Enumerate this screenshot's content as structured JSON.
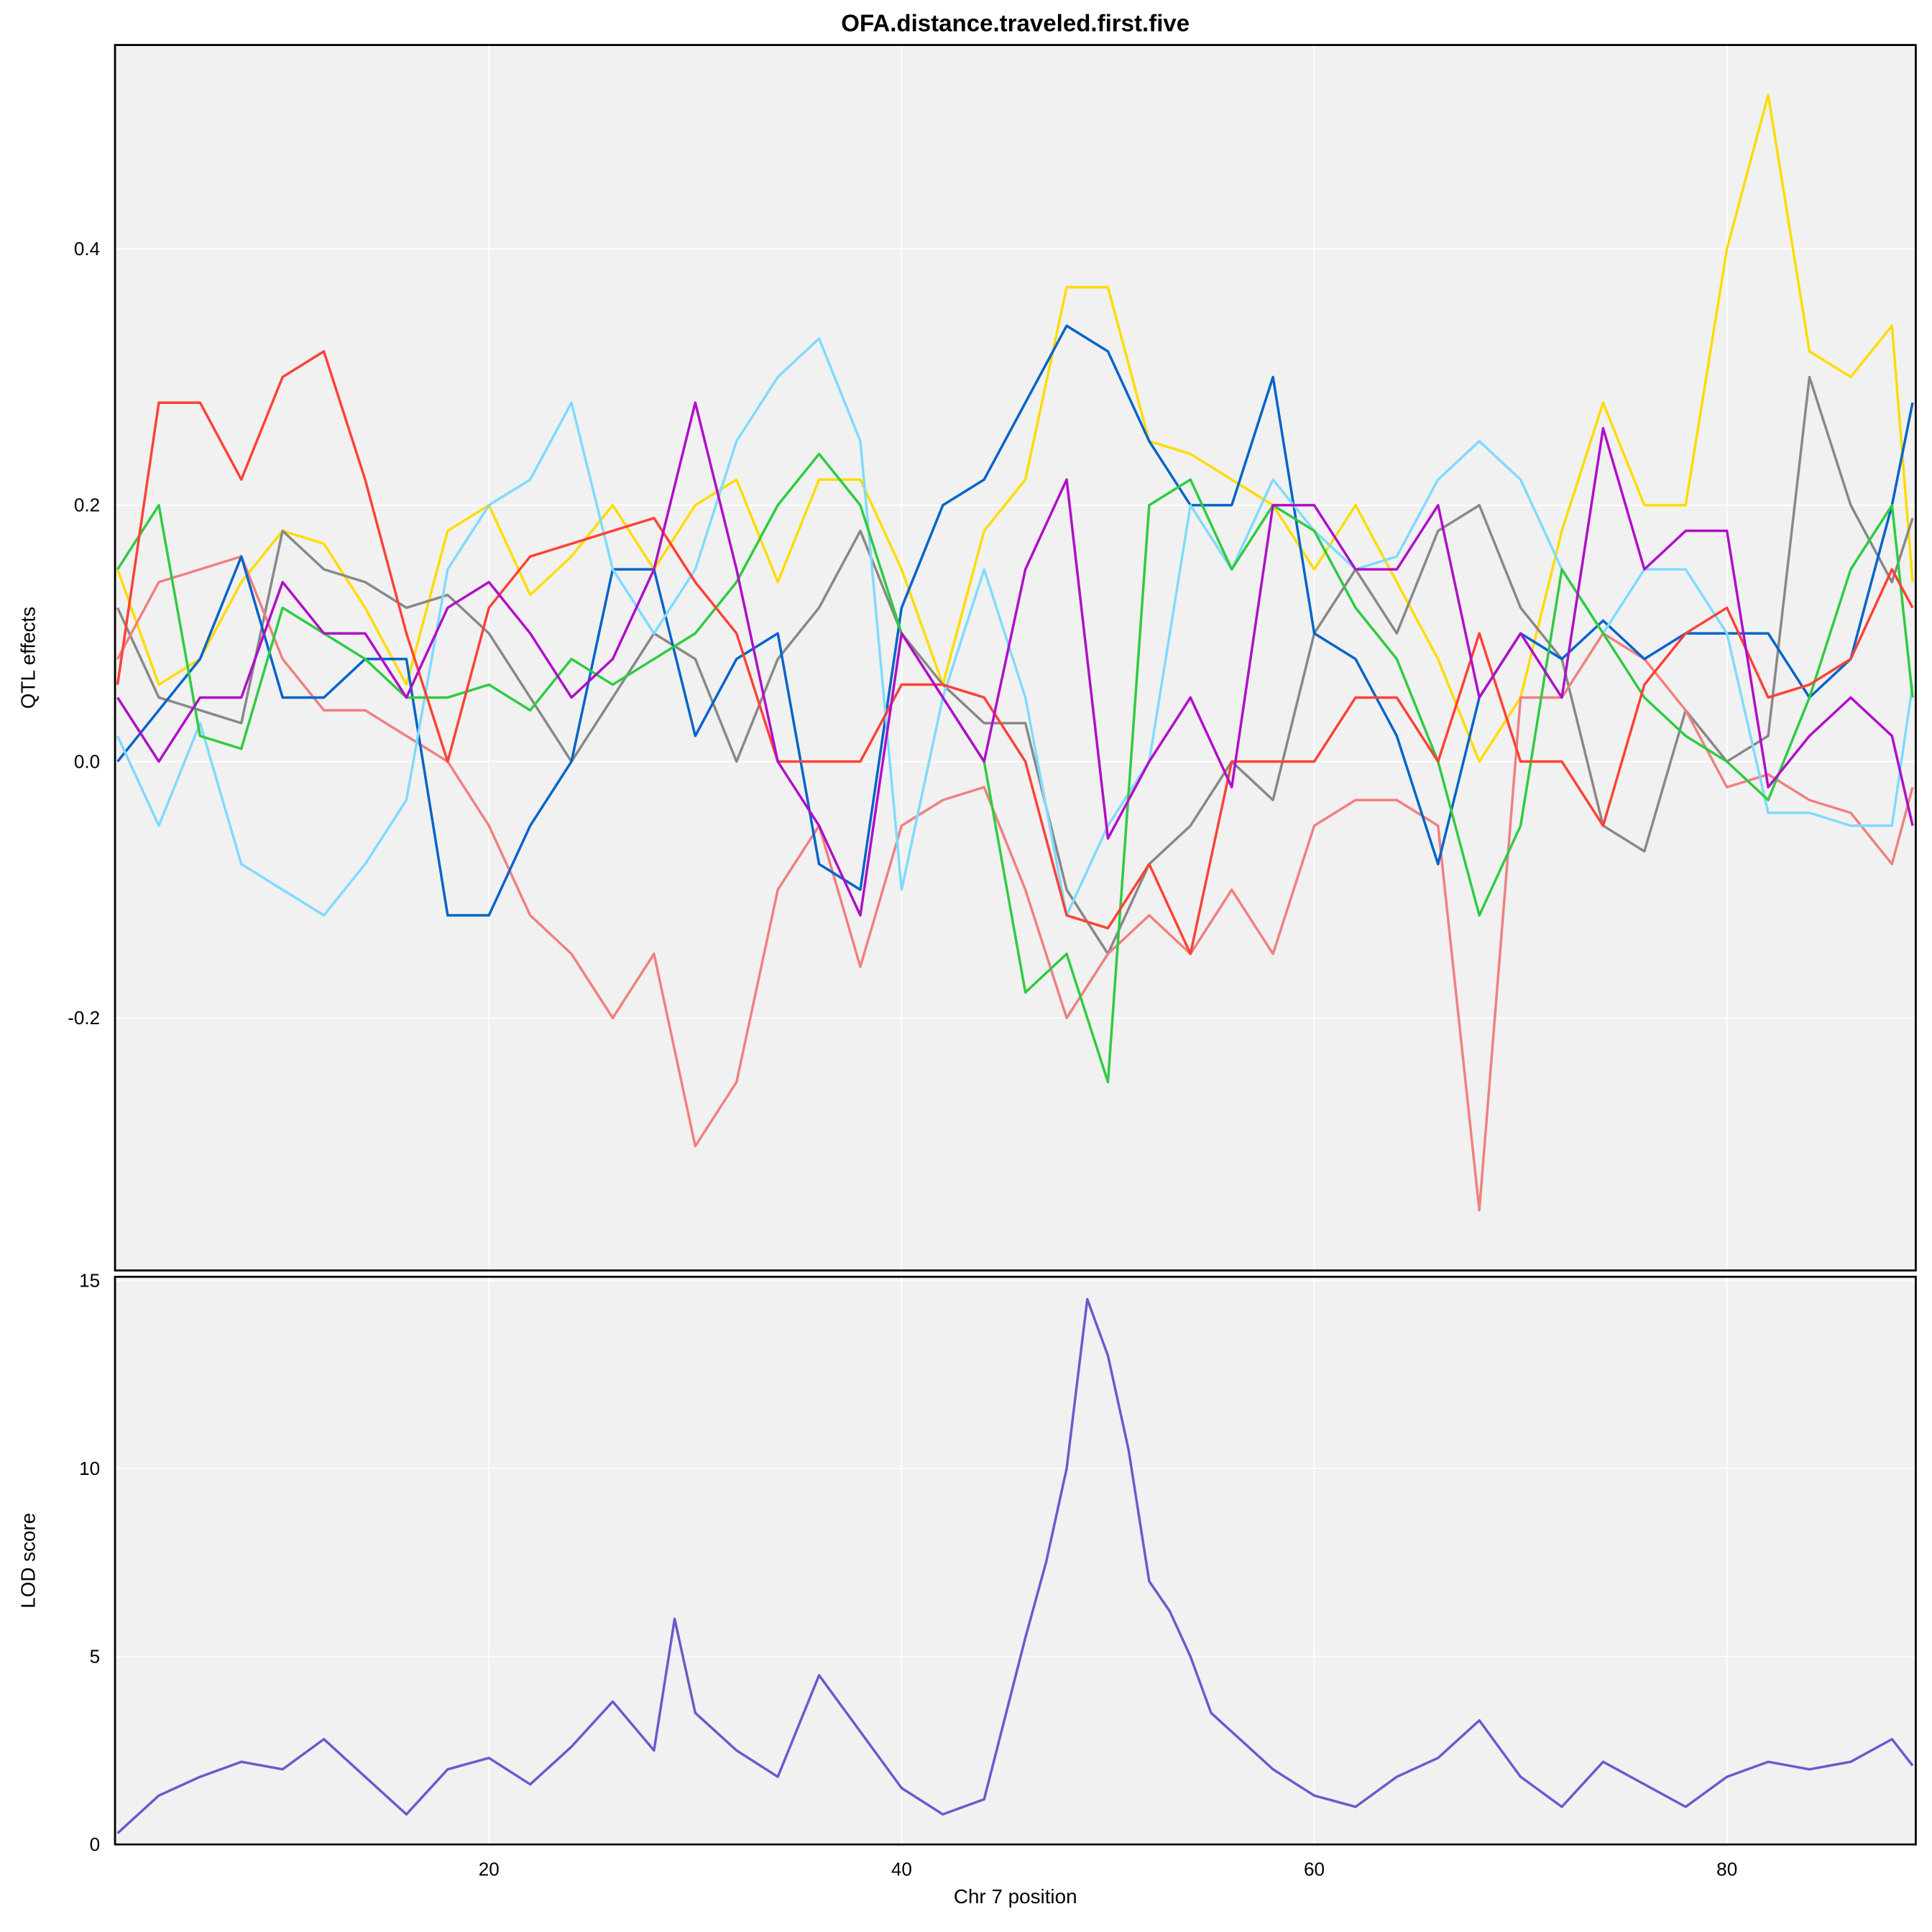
{
  "chart_data": [
    {
      "type": "line",
      "title": "OFA.distance.traveled.first.five",
      "xlabel": "",
      "ylabel": "QTL effects",
      "xlim": [
        1.88,
        89.15
      ],
      "ylim": [
        -0.397,
        0.559
      ],
      "grid": true,
      "xticks": [
        20,
        40,
        60,
        80
      ],
      "yticks": [
        -0.2,
        0.0,
        0.2,
        0.4
      ],
      "ytick_labels": [
        "-0.2",
        "0.0",
        "0.2",
        "0.4"
      ],
      "x": [
        2,
        4,
        6,
        8,
        10,
        12,
        14,
        16,
        18,
        20,
        22,
        24,
        26,
        28,
        30,
        32,
        34,
        36,
        38,
        40,
        42,
        44,
        46,
        48,
        50,
        52,
        54,
        56,
        58,
        60,
        62,
        64,
        66,
        68,
        70,
        72,
        74,
        76,
        78,
        80,
        82,
        84,
        86,
        88,
        89
      ],
      "series": [
        {
          "name": "yellow",
          "color": "#FFDC00",
          "values": [
            0.15,
            0.06,
            0.08,
            0.14,
            0.18,
            0.17,
            0.12,
            0.06,
            0.18,
            0.2,
            0.13,
            0.16,
            0.2,
            0.15,
            0.2,
            0.22,
            0.14,
            0.22,
            0.22,
            0.15,
            0.06,
            0.18,
            0.22,
            0.37,
            0.37,
            0.25,
            0.24,
            0.22,
            0.2,
            0.15,
            0.2,
            0.14,
            0.08,
            0.0,
            0.05,
            0.18,
            0.28,
            0.2,
            0.2,
            0.4,
            0.52,
            0.32,
            0.3,
            0.34,
            0.14
          ]
        },
        {
          "name": "gray",
          "color": "#888888",
          "values": [
            0.12,
            0.05,
            0.04,
            0.03,
            0.18,
            0.15,
            0.14,
            0.12,
            0.13,
            0.1,
            0.05,
            0.0,
            0.05,
            0.1,
            0.08,
            0.0,
            0.08,
            0.12,
            0.18,
            0.1,
            0.06,
            0.03,
            0.03,
            -0.1,
            -0.15,
            -0.08,
            -0.05,
            0.0,
            -0.03,
            0.1,
            0.15,
            0.1,
            0.18,
            0.2,
            0.12,
            0.08,
            -0.05,
            -0.07,
            0.04,
            0.0,
            0.02,
            0.3,
            0.2,
            0.14,
            0.19
          ]
        },
        {
          "name": "salmon",
          "color": "#F08080",
          "values": [
            0.08,
            0.14,
            0.15,
            0.16,
            0.08,
            0.04,
            0.04,
            0.02,
            0.0,
            -0.05,
            -0.12,
            -0.15,
            -0.2,
            -0.15,
            -0.3,
            -0.25,
            -0.1,
            -0.05,
            -0.16,
            -0.05,
            -0.03,
            -0.02,
            -0.1,
            -0.2,
            -0.15,
            -0.12,
            -0.15,
            -0.1,
            -0.15,
            -0.05,
            -0.03,
            -0.03,
            -0.05,
            -0.35,
            0.05,
            0.05,
            0.1,
            0.08,
            0.04,
            -0.02,
            -0.01,
            -0.03,
            -0.04,
            -0.08,
            -0.02
          ]
        },
        {
          "name": "blue",
          "color": "#0064C9",
          "values": [
            0.0,
            0.04,
            0.08,
            0.16,
            0.05,
            0.05,
            0.08,
            0.08,
            -0.12,
            -0.12,
            -0.05,
            0.0,
            0.15,
            0.15,
            0.02,
            0.08,
            0.1,
            -0.08,
            -0.1,
            0.12,
            0.2,
            0.22,
            0.28,
            0.34,
            0.32,
            0.25,
            0.2,
            0.2,
            0.3,
            0.1,
            0.08,
            0.02,
            -0.08,
            0.05,
            0.1,
            0.08,
            0.11,
            0.08,
            0.1,
            0.1,
            0.1,
            0.05,
            0.08,
            0.2,
            0.28
          ]
        },
        {
          "name": "lightblue",
          "color": "#7FDBFF",
          "values": [
            0.02,
            -0.05,
            0.03,
            -0.08,
            -0.1,
            -0.12,
            -0.08,
            -0.03,
            0.15,
            0.2,
            0.22,
            0.28,
            0.15,
            0.1,
            0.15,
            0.25,
            0.3,
            0.33,
            0.25,
            -0.1,
            0.05,
            0.15,
            0.05,
            -0.12,
            -0.05,
            0.0,
            0.2,
            0.15,
            0.22,
            0.18,
            0.15,
            0.16,
            0.22,
            0.25,
            0.22,
            0.15,
            0.1,
            0.15,
            0.15,
            0.1,
            -0.04,
            -0.04,
            -0.05,
            -0.05,
            0.06
          ]
        },
        {
          "name": "green",
          "color": "#2ECC40",
          "values": [
            0.15,
            0.2,
            0.02,
            0.01,
            0.12,
            0.1,
            0.08,
            0.05,
            0.05,
            0.06,
            0.04,
            0.08,
            0.06,
            0.08,
            0.1,
            0.14,
            0.2,
            0.24,
            0.2,
            0.1,
            0.05,
            0.0,
            -0.18,
            -0.15,
            -0.25,
            0.2,
            0.22,
            0.15,
            0.2,
            0.18,
            0.12,
            0.08,
            0.0,
            -0.12,
            -0.05,
            0.15,
            0.1,
            0.05,
            0.02,
            0.0,
            -0.03,
            0.05,
            0.15,
            0.2,
            0.05
          ]
        },
        {
          "name": "red",
          "color": "#FF4136",
          "values": [
            0.06,
            0.28,
            0.28,
            0.22,
            0.3,
            0.32,
            0.22,
            0.1,
            0.0,
            0.12,
            0.16,
            0.17,
            0.18,
            0.19,
            0.14,
            0.1,
            0.0,
            0.0,
            0.0,
            0.06,
            0.06,
            0.05,
            0.0,
            -0.12,
            -0.13,
            -0.08,
            -0.15,
            0.0,
            0.0,
            0.0,
            0.05,
            0.05,
            0.0,
            0.1,
            0.0,
            0.0,
            -0.05,
            0.06,
            0.1,
            0.12,
            0.05,
            0.06,
            0.08,
            0.15,
            0.12
          ]
        },
        {
          "name": "purple",
          "color": "#B10DC9",
          "values": [
            0.05,
            0.0,
            0.05,
            0.05,
            0.14,
            0.1,
            0.1,
            0.05,
            0.12,
            0.14,
            0.1,
            0.05,
            0.08,
            0.15,
            0.28,
            0.15,
            0.0,
            -0.05,
            -0.12,
            0.1,
            0.05,
            0.0,
            0.15,
            0.22,
            -0.06,
            0.0,
            0.05,
            -0.02,
            0.2,
            0.2,
            0.15,
            0.15,
            0.2,
            0.05,
            0.1,
            0.05,
            0.26,
            0.15,
            0.18,
            0.18,
            -0.02,
            0.02,
            0.05,
            0.02,
            -0.05
          ]
        }
      ]
    },
    {
      "type": "line",
      "title": "",
      "xlabel": "Chr 7 position",
      "ylabel": "LOD score",
      "xlim": [
        1.88,
        89.15
      ],
      "ylim": [
        0,
        15.1
      ],
      "grid": true,
      "xticks": [
        20,
        40,
        60,
        80
      ],
      "xtick_labels": [
        "20",
        "40",
        "60",
        "80"
      ],
      "yticks": [
        0,
        5,
        10,
        15
      ],
      "ytick_labels": [
        "0",
        "5",
        "10",
        "15"
      ],
      "x": [
        2,
        4,
        6,
        8,
        10,
        12,
        14,
        16,
        18,
        20,
        22,
        24,
        26,
        28,
        29,
        30,
        32,
        34,
        36,
        38,
        40,
        42,
        44,
        46,
        47,
        48,
        49,
        50,
        51,
        52,
        53,
        54,
        55,
        56,
        58,
        60,
        62,
        64,
        66,
        68,
        70,
        72,
        74,
        76,
        78,
        80,
        82,
        84,
        86,
        88,
        89
      ],
      "series": [
        {
          "name": "LOD",
          "color": "#6A5ACD",
          "values": [
            0.3,
            1.3,
            1.8,
            2.2,
            2.0,
            2.8,
            1.8,
            0.8,
            2.0,
            2.3,
            1.6,
            2.6,
            3.8,
            2.5,
            6.0,
            3.5,
            2.5,
            1.8,
            4.5,
            3.0,
            1.5,
            0.8,
            1.2,
            5.5,
            7.5,
            10.0,
            14.5,
            13.0,
            10.5,
            7.0,
            6.2,
            5.0,
            3.5,
            3.0,
            2.0,
            1.3,
            1.0,
            1.8,
            2.3,
            3.3,
            1.8,
            1.0,
            2.2,
            1.6,
            1.0,
            1.8,
            2.2,
            2.0,
            2.2,
            2.8,
            2.1
          ]
        }
      ]
    }
  ]
}
